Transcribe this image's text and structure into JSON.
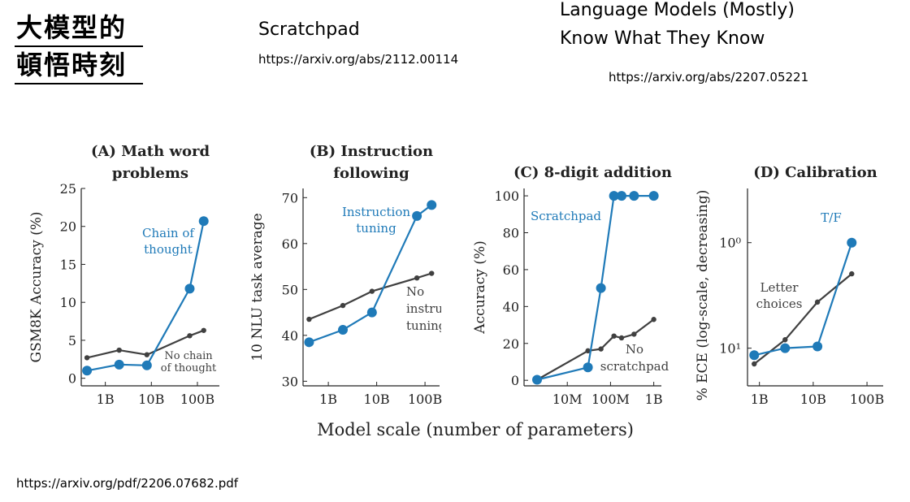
{
  "slide": {
    "title_line1": "大模型的",
    "title_line2": "頓悟時刻",
    "scratchpad_title": "Scratchpad",
    "scratchpad_url": "https://arxiv.org/abs/2112.00114",
    "lm_title_line1": "Language Models (Mostly)",
    "lm_title_line2": "Know What They Know",
    "lm_url": "https://arxiv.org/abs/2207.05221",
    "source_url": "https://arxiv.org/pdf/2206.07682.pdf"
  },
  "figure": {
    "shared_xlabel": "Model scale (number of parameters)",
    "colors": {
      "emergent": "#1f7ab8",
      "baseline": "#404040",
      "axis": "#222222"
    }
  },
  "chart_data": [
    {
      "type": "line",
      "title_line1": "(A) Math word",
      "title_line2": "problems",
      "ylabel": "GSM8K Accuracy (%)",
      "xscale": "log",
      "xlim": [
        300000000.0,
        300000000000.0
      ],
      "ylim": [
        -1,
        25
      ],
      "yticks": [
        0,
        5,
        10,
        15,
        20,
        25
      ],
      "yticklabels": [
        "0",
        "5",
        "10",
        "15",
        "20",
        "25"
      ],
      "xticks": [
        1000000000.0,
        10000000000.0,
        100000000000.0
      ],
      "xticklabels": [
        "1B",
        "10B",
        "100B"
      ],
      "series": [
        {
          "name": "Chain of thought",
          "label_line1": "Chain of",
          "label_line2": "thought",
          "color": "#1f7ab8",
          "x": [
            400000000.0,
            2000000000.0,
            8000000000.0,
            68000000000.0,
            137000000000.0
          ],
          "y": [
            1.0,
            1.8,
            1.7,
            11.8,
            20.7
          ]
        },
        {
          "name": "No chain of thought",
          "label_line1": "No chain",
          "label_line2": "of thought",
          "color": "#404040",
          "x": [
            400000000.0,
            2000000000.0,
            8000000000.0,
            68000000000.0,
            137000000000.0
          ],
          "y": [
            2.7,
            3.7,
            3.1,
            5.6,
            6.3
          ]
        }
      ]
    },
    {
      "type": "line",
      "title_line1": "(B) Instruction",
      "title_line2": "following",
      "ylabel": "10 NLU task average",
      "xscale": "log",
      "xlim": [
        300000000.0,
        200000000000.0
      ],
      "ylim": [
        29,
        72
      ],
      "yticks": [
        30,
        40,
        50,
        60,
        70
      ],
      "yticklabels": [
        "30",
        "40",
        "50",
        "60",
        "70"
      ],
      "xticks": [
        1000000000.0,
        10000000000.0,
        100000000000.0
      ],
      "xticklabels": [
        "1B",
        "10B",
        "100B"
      ],
      "series": [
        {
          "name": "Instruction tuning",
          "label_line1": "Instruction",
          "label_line2": "tuning",
          "color": "#1f7ab8",
          "x": [
            400000000.0,
            2000000000.0,
            8000000000.0,
            68000000000.0,
            137000000000.0
          ],
          "y": [
            38.5,
            41.2,
            45.0,
            66.0,
            68.4
          ]
        },
        {
          "name": "No instruction tuning",
          "label_line1": "No",
          "label_line2": "instruction",
          "label_line3": "tuning",
          "color": "#404040",
          "x": [
            400000000.0,
            2000000000.0,
            8000000000.0,
            68000000000.0,
            137000000000.0
          ],
          "y": [
            43.5,
            46.5,
            49.6,
            52.5,
            53.5
          ]
        }
      ]
    },
    {
      "type": "line",
      "title_line1": "(C) 8-digit addition",
      "ylabel": "Accuracy (%)",
      "xscale": "log",
      "xlim": [
        1000000.0,
        1500000000.0
      ],
      "ylim": [
        -3,
        104
      ],
      "yticks": [
        0,
        20,
        40,
        60,
        80,
        100
      ],
      "yticklabels": [
        "0",
        "20",
        "40",
        "60",
        "80",
        "100"
      ],
      "xticks": [
        10000000.0,
        100000000.0,
        1000000000.0
      ],
      "xticklabels": [
        "10M",
        "100M",
        "1B"
      ],
      "series": [
        {
          "name": "Scratchpad",
          "label_line1": "Scratchpad",
          "color": "#1f7ab8",
          "x": [
            2000000.0,
            30000000.0,
            60000000.0,
            120000000.0,
            180000000.0,
            350000000.0,
            1000000000.0
          ],
          "y": [
            0.3,
            7,
            50,
            100,
            100,
            100,
            100
          ]
        },
        {
          "name": "No scratchpad",
          "label_line1": "No",
          "label_line2": "scratchpad",
          "color": "#404040",
          "x": [
            2000000.0,
            30000000.0,
            60000000.0,
            120000000.0,
            180000000.0,
            350000000.0,
            1000000000.0
          ],
          "y": [
            0.3,
            16,
            17,
            24,
            23,
            25,
            33
          ]
        }
      ]
    },
    {
      "type": "line",
      "title_line1": "(D) Calibration",
      "ylabel": "% ECE (log-scale, decreasing)",
      "xscale": "log",
      "yscale": "log",
      "xlim": [
        600000000.0,
        200000000000.0
      ],
      "ylim": [
        0.5,
        1.3
      ],
      "yticks": [
        0.6,
        1.0
      ],
      "yticklabels": [
        "10¹",
        "10⁰"
      ],
      "xticks": [
        1000000000.0,
        10000000000.0,
        100000000000.0
      ],
      "xticklabels": [
        "1B",
        "10B",
        "100B"
      ],
      "series": [
        {
          "name": "T/F",
          "label_line1": "T/F",
          "color": "#1f7ab8",
          "x": [
            800000000.0,
            3000000000.0,
            12000000000.0,
            52000000000.0
          ],
          "y": [
            0.58,
            0.6,
            0.605,
            1.0
          ]
        },
        {
          "name": "Letter choices",
          "label_line1": "Letter",
          "label_line2": "choices",
          "color": "#404040",
          "x": [
            800000000.0,
            3000000000.0,
            12000000000.0,
            52000000000.0
          ],
          "y": [
            0.556,
            0.625,
            0.75,
            0.86
          ]
        }
      ]
    }
  ]
}
